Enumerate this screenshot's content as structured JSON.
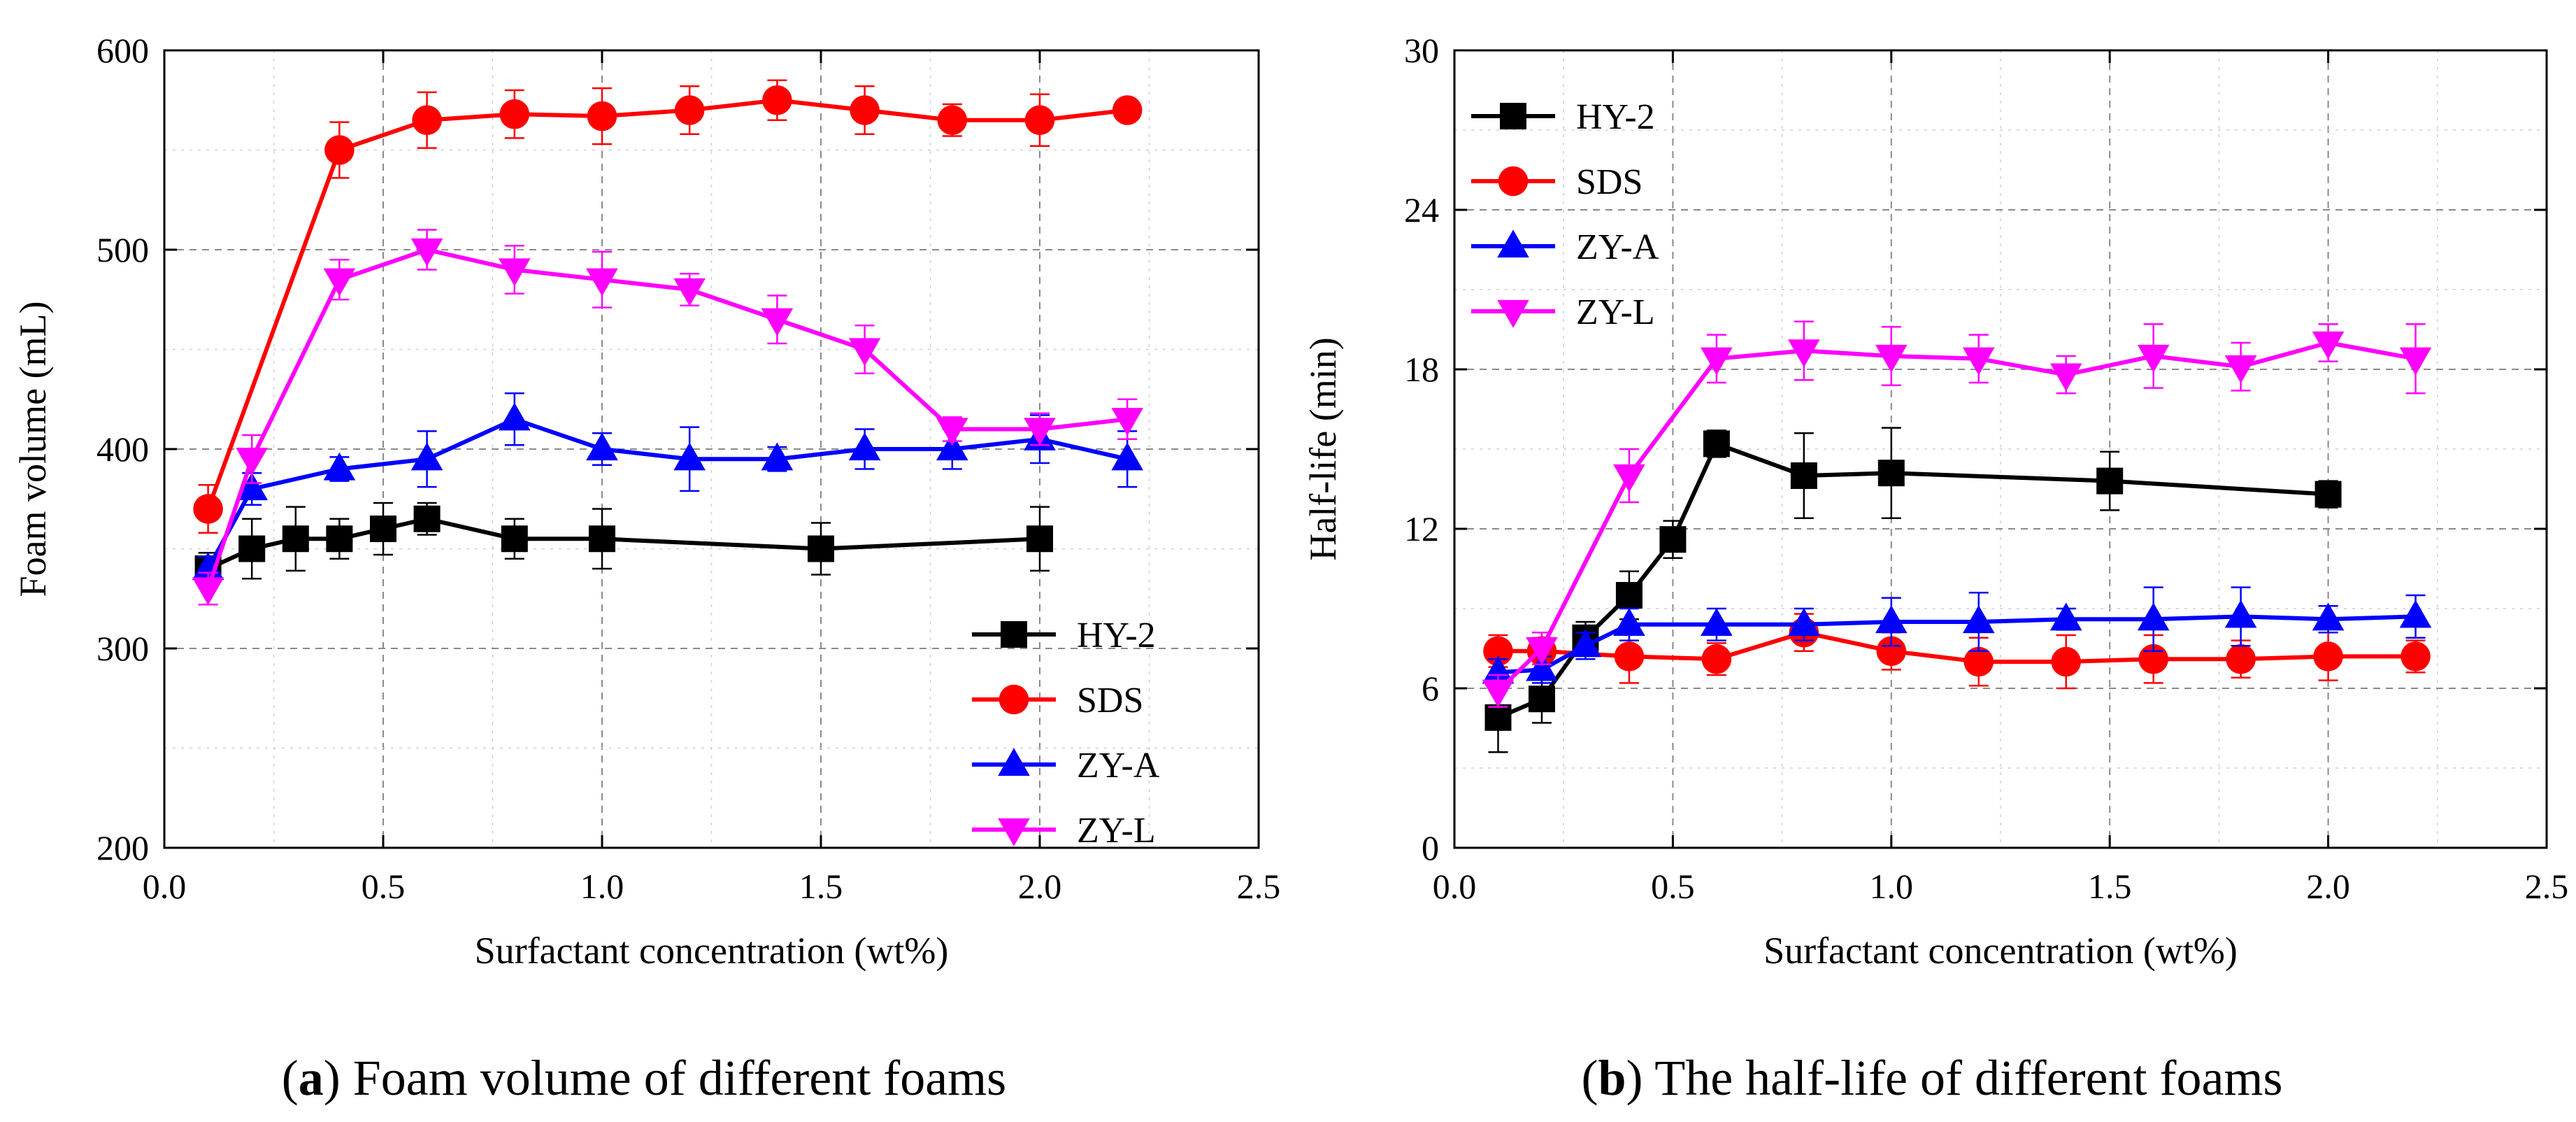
{
  "chart_data": [
    {
      "type": "line",
      "panel_tag": "a",
      "caption": "Foam volume of different foams",
      "xlabel": "Surfactant concentration (wt%)",
      "ylabel": "Foam volume (mL)",
      "xlim": [
        0.0,
        2.5
      ],
      "ylim": [
        200,
        600
      ],
      "xticks": [
        0.0,
        0.5,
        1.0,
        1.5,
        2.0,
        2.5
      ],
      "xtick_labels": [
        "0.0",
        "0.5",
        "1.0",
        "1.5",
        "2.0",
        "2.5"
      ],
      "yticks": [
        200,
        300,
        400,
        500,
        600
      ],
      "ytick_labels": [
        "200",
        "300",
        "400",
        "500",
        "600"
      ],
      "grid": true,
      "legend_position": "bottom-right",
      "series": [
        {
          "name": "HY-2",
          "color": "#000000",
          "marker": "square",
          "x": [
            0.1,
            0.2,
            0.3,
            0.4,
            0.5,
            0.6,
            0.8,
            1.0,
            1.5,
            2.0
          ],
          "y": [
            340,
            350,
            355,
            355,
            360,
            365,
            355,
            355,
            350,
            355
          ],
          "err": [
            8,
            15,
            16,
            10,
            13,
            8,
            10,
            15,
            13,
            16
          ]
        },
        {
          "name": "SDS",
          "color": "#ff0000",
          "marker": "circle",
          "x": [
            0.1,
            0.4,
            0.6,
            0.8,
            1.0,
            1.2,
            1.4,
            1.6,
            1.8,
            2.0,
            2.2
          ],
          "y": [
            370,
            550,
            565,
            568,
            567,
            570,
            575,
            570,
            565,
            565,
            570
          ],
          "err": [
            12,
            14,
            14,
            12,
            14,
            12,
            10,
            12,
            8,
            13,
            5
          ]
        },
        {
          "name": "ZY-A",
          "color": "#0000ff",
          "marker": "triangle-up",
          "x": [
            0.1,
            0.2,
            0.4,
            0.6,
            0.8,
            1.0,
            1.2,
            1.4,
            1.6,
            1.8,
            2.0,
            2.2
          ],
          "y": [
            340,
            380,
            390,
            395,
            415,
            400,
            395,
            395,
            400,
            400,
            405,
            395
          ],
          "err": [
            6,
            8,
            6,
            14,
            13,
            8,
            16,
            6,
            10,
            10,
            12,
            14
          ]
        },
        {
          "name": "ZY-L",
          "color": "#ff00ff",
          "marker": "triangle-down",
          "x": [
            0.1,
            0.2,
            0.4,
            0.6,
            0.8,
            1.0,
            1.2,
            1.4,
            1.6,
            1.8,
            2.0,
            2.2
          ],
          "y": [
            330,
            395,
            485,
            500,
            490,
            485,
            480,
            465,
            450,
            410,
            410,
            415
          ],
          "err": [
            8,
            12,
            10,
            10,
            12,
            14,
            8,
            12,
            12,
            6,
            8,
            10
          ]
        }
      ]
    },
    {
      "type": "line",
      "panel_tag": "b",
      "caption": "The half-life of different foams",
      "xlabel": "Surfactant concentration (wt%)",
      "ylabel": "Half-life (min)",
      "xlim": [
        0.0,
        2.5
      ],
      "ylim": [
        0,
        30
      ],
      "xticks": [
        0.0,
        0.5,
        1.0,
        1.5,
        2.0,
        2.5
      ],
      "xtick_labels": [
        "0.0",
        "0.5",
        "1.0",
        "1.5",
        "2.0",
        "2.5"
      ],
      "yticks": [
        0,
        6,
        12,
        18,
        24,
        30
      ],
      "ytick_labels": [
        "0",
        "6",
        "12",
        "18",
        "24",
        "30"
      ],
      "grid": true,
      "legend_position": "top-left",
      "series": [
        {
          "name": "HY-2",
          "color": "#000000",
          "marker": "square",
          "x": [
            0.1,
            0.2,
            0.3,
            0.4,
            0.5,
            0.6,
            0.8,
            1.0,
            1.5,
            2.0
          ],
          "y": [
            4.9,
            5.6,
            7.9,
            9.5,
            11.6,
            15.2,
            14.0,
            14.1,
            13.8,
            13.3
          ],
          "err": [
            1.3,
            0.9,
            0.6,
            0.9,
            0.7,
            0.5,
            1.6,
            1.7,
            1.1,
            0.5
          ]
        },
        {
          "name": "SDS",
          "color": "#ff0000",
          "marker": "circle",
          "x": [
            0.1,
            0.2,
            0.4,
            0.6,
            0.8,
            1.0,
            1.2,
            1.4,
            1.6,
            1.8,
            2.0,
            2.2
          ],
          "y": [
            7.4,
            7.4,
            7.2,
            7.1,
            8.1,
            7.4,
            7.0,
            7.0,
            7.1,
            7.1,
            7.2,
            7.2
          ],
          "err": [
            0.6,
            0.5,
            1.0,
            0.6,
            0.7,
            0.7,
            0.9,
            1.0,
            0.9,
            0.7,
            0.9,
            0.6
          ]
        },
        {
          "name": "ZY-A",
          "color": "#0000ff",
          "marker": "triangle-up",
          "x": [
            0.1,
            0.2,
            0.3,
            0.4,
            0.6,
            0.8,
            1.0,
            1.2,
            1.4,
            1.6,
            1.8,
            2.0,
            2.2
          ],
          "y": [
            6.6,
            6.7,
            7.6,
            8.4,
            8.4,
            8.4,
            8.5,
            8.5,
            8.6,
            8.6,
            8.7,
            8.6,
            8.7
          ],
          "err": [
            0.5,
            0.5,
            0.5,
            0.6,
            0.6,
            0.6,
            0.9,
            1.1,
            0.4,
            1.2,
            1.1,
            0.5,
            0.8
          ]
        },
        {
          "name": "ZY-L",
          "color": "#ff00ff",
          "marker": "triangle-down",
          "x": [
            0.1,
            0.2,
            0.4,
            0.6,
            0.8,
            1.0,
            1.2,
            1.4,
            1.6,
            1.8,
            2.0,
            2.2
          ],
          "y": [
            5.9,
            7.5,
            14.0,
            18.4,
            18.7,
            18.5,
            18.4,
            17.8,
            18.5,
            18.1,
            19.0,
            18.4
          ],
          "err": [
            0.6,
            0.6,
            1.0,
            0.9,
            1.1,
            1.1,
            0.9,
            0.7,
            1.2,
            0.9,
            0.7,
            1.3
          ]
        }
      ]
    }
  ]
}
